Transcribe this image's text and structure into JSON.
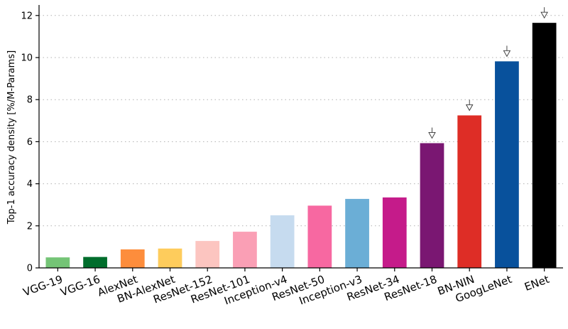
{
  "chart_data": {
    "type": "bar",
    "title": "",
    "xlabel": "",
    "ylabel": "Top-1 accuracy density [%/M-Params]",
    "ylim": [
      0,
      12.5
    ],
    "yticks": [
      0,
      2,
      4,
      6,
      8,
      10,
      12
    ],
    "grid": "horizontal",
    "categories": [
      "VGG-19",
      "VGG-16",
      "AlexNet",
      "BN-AlexNet",
      "ResNet-152",
      "ResNet-101",
      "Inception-v4",
      "ResNet-50",
      "Inception-v3",
      "ResNet-34",
      "ResNet-18",
      "BN-NIN",
      "GoogLeNet",
      "ENet"
    ],
    "values": [
      0.5,
      0.52,
      0.88,
      0.92,
      1.28,
      1.72,
      2.5,
      2.96,
      3.28,
      3.35,
      5.93,
      7.25,
      9.82,
      11.65
    ],
    "colors": [
      "#74c476",
      "#006d2c",
      "#fd8d3c",
      "#fecc5c",
      "#fcc5c0",
      "#fa9fb5",
      "#c6dbef",
      "#f768a1",
      "#6baed6",
      "#c51b8a",
      "#7a1772",
      "#de2d26",
      "#08519c",
      "#000000"
    ],
    "arrow_markers": [
      "ResNet-18",
      "BN-NIN",
      "GoogLeNet",
      "ENet"
    ]
  }
}
